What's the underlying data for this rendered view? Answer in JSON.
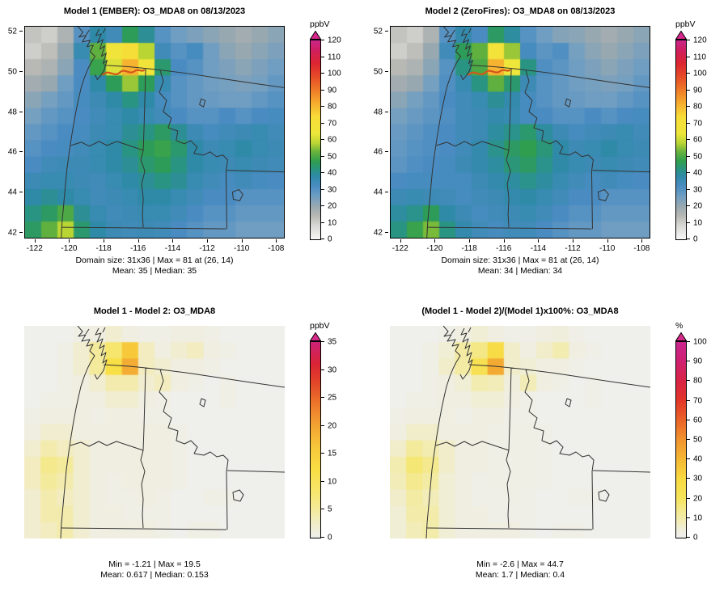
{
  "figure": {
    "background": "#ffffff",
    "boundary_color": "#333333",
    "plume_color": "#d4551a"
  },
  "chart_data": [
    {
      "type": "heatmap",
      "title": "Model 1 (EMBER): O3_MDA8 on 08/13/2023",
      "colorbar_label": "ppbV",
      "colorbar_min": 0,
      "colorbar_max": 120,
      "colorbar_ticks": [
        0,
        10,
        20,
        30,
        40,
        50,
        60,
        70,
        80,
        90,
        100,
        110,
        120
      ],
      "over_color": "#d6278c",
      "x_ticks": [
        -122,
        -120,
        -118,
        -116,
        -114,
        -112,
        -110,
        -108
      ],
      "y_ticks": [
        42,
        44,
        46,
        48,
        50,
        52
      ],
      "x_range": [
        -122.6,
        -107.5
      ],
      "y_range": [
        41.7,
        52.3
      ],
      "stats_line1": "Domain size: 31x36 | Max = 81 at (26, 14)",
      "stats_line2": "Mean: 35 | Median: 35",
      "colormap": [
        [
          0,
          "#f7f7f7"
        ],
        [
          8,
          "#d9d9d6"
        ],
        [
          14,
          "#b8b8b4"
        ],
        [
          20,
          "#98a8b0"
        ],
        [
          26,
          "#6f9ec2"
        ],
        [
          32,
          "#4a8cc2"
        ],
        [
          38,
          "#2f8aa8"
        ],
        [
          42,
          "#2a9482"
        ],
        [
          47,
          "#2f9e4f"
        ],
        [
          53,
          "#6ab33c"
        ],
        [
          58,
          "#b9d534"
        ],
        [
          64,
          "#eee63a"
        ],
        [
          74,
          "#f8dc38"
        ],
        [
          82,
          "#f6ad2e"
        ],
        [
          90,
          "#ef7b28"
        ],
        [
          98,
          "#e64c28"
        ],
        [
          106,
          "#dc2631"
        ],
        [
          114,
          "#cf1f5e"
        ],
        [
          120,
          "#c9268c"
        ]
      ],
      "grid": [
        [
          12,
          10,
          16,
          30,
          38,
          34,
          46,
          40,
          30,
          26,
          24,
          22,
          20,
          18,
          20,
          22
        ],
        [
          10,
          13,
          20,
          36,
          52,
          66,
          72,
          58,
          34,
          30,
          33,
          26,
          22,
          20,
          22,
          24
        ],
        [
          14,
          16,
          22,
          32,
          48,
          62,
          81,
          66,
          44,
          32,
          30,
          26,
          24,
          22,
          24,
          26
        ],
        [
          18,
          20,
          26,
          32,
          38,
          46,
          56,
          46,
          36,
          30,
          28,
          26,
          25,
          24,
          25,
          28
        ],
        [
          22,
          25,
          28,
          33,
          35,
          38,
          42,
          38,
          33,
          30,
          28,
          27,
          26,
          26,
          28,
          30
        ],
        [
          25,
          28,
          30,
          32,
          34,
          36,
          38,
          36,
          34,
          32,
          30,
          30,
          32,
          30,
          32,
          33
        ],
        [
          28,
          30,
          32,
          33,
          35,
          36,
          40,
          42,
          45,
          40,
          35,
          33,
          34,
          35,
          36,
          34
        ],
        [
          30,
          32,
          33,
          34,
          36,
          38,
          42,
          46,
          48,
          44,
          38,
          35,
          36,
          38,
          36,
          35
        ],
        [
          32,
          34,
          35,
          35,
          36,
          38,
          40,
          44,
          46,
          42,
          38,
          36,
          35,
          36,
          35,
          34
        ],
        [
          35,
          36,
          36,
          35,
          34,
          36,
          38,
          40,
          42,
          40,
          36,
          34,
          33,
          34,
          33,
          32
        ],
        [
          38,
          40,
          38,
          36,
          34,
          35,
          36,
          38,
          38,
          36,
          34,
          32,
          32,
          30,
          30,
          30
        ],
        [
          42,
          45,
          50,
          40,
          36,
          34,
          35,
          36,
          36,
          34,
          32,
          30,
          30,
          28,
          28,
          28
        ],
        [
          45,
          52,
          58,
          44,
          38,
          35,
          34,
          35,
          34,
          32,
          30,
          28,
          28,
          26,
          26,
          26
        ]
      ]
    },
    {
      "type": "heatmap",
      "title": "Model 2 (ZeroFires): O3_MDA8 on 08/13/2023",
      "colorbar_label": "ppbV",
      "colorbar_min": 0,
      "colorbar_max": 120,
      "colorbar_ticks": [
        0,
        10,
        20,
        30,
        40,
        50,
        60,
        70,
        80,
        90,
        100,
        110,
        120
      ],
      "over_color": "#d6278c",
      "x_ticks": [
        -122,
        -120,
        -118,
        -116,
        -114,
        -112,
        -110,
        -108
      ],
      "y_ticks": [
        42,
        44,
        46,
        48,
        50,
        52
      ],
      "x_range": [
        -122.6,
        -107.5
      ],
      "y_range": [
        41.7,
        52.3
      ],
      "stats_line1": "Domain size: 31x36 | Max = 81 at (26, 14)",
      "stats_line2": "Mean: 34 | Median: 34",
      "colormap": [
        [
          0,
          "#f7f7f7"
        ],
        [
          8,
          "#d9d9d6"
        ],
        [
          14,
          "#b8b8b4"
        ],
        [
          20,
          "#98a8b0"
        ],
        [
          26,
          "#6f9ec2"
        ],
        [
          32,
          "#4a8cc2"
        ],
        [
          38,
          "#2f8aa8"
        ],
        [
          42,
          "#2a9482"
        ],
        [
          47,
          "#2f9e4f"
        ],
        [
          53,
          "#6ab33c"
        ],
        [
          58,
          "#b9d534"
        ],
        [
          64,
          "#eee63a"
        ],
        [
          74,
          "#f8dc38"
        ],
        [
          82,
          "#f6ad2e"
        ],
        [
          90,
          "#ef7b28"
        ],
        [
          98,
          "#e64c28"
        ],
        [
          106,
          "#dc2631"
        ],
        [
          114,
          "#cf1f5e"
        ],
        [
          120,
          "#c9268c"
        ]
      ],
      "grid": [
        [
          12,
          10,
          16,
          30,
          37,
          32,
          45,
          39,
          30,
          26,
          23,
          22,
          20,
          18,
          20,
          22
        ],
        [
          10,
          13,
          20,
          34,
          46,
          52,
          68,
          56,
          33,
          29,
          31,
          25,
          22,
          20,
          22,
          24
        ],
        [
          14,
          16,
          22,
          30,
          42,
          50,
          81,
          64,
          42,
          31,
          29,
          26,
          24,
          22,
          24,
          26
        ],
        [
          18,
          20,
          25,
          31,
          36,
          42,
          52,
          44,
          35,
          30,
          28,
          26,
          25,
          24,
          25,
          28
        ],
        [
          22,
          25,
          28,
          32,
          34,
          36,
          40,
          37,
          33,
          30,
          28,
          27,
          26,
          26,
          28,
          30
        ],
        [
          25,
          27,
          29,
          31,
          34,
          35,
          37,
          36,
          33,
          32,
          30,
          30,
          32,
          30,
          32,
          33
        ],
        [
          27,
          29,
          31,
          32,
          34,
          35,
          39,
          41,
          44,
          39,
          35,
          33,
          34,
          35,
          36,
          34
        ],
        [
          28,
          30,
          31,
          32,
          34,
          37,
          41,
          45,
          47,
          43,
          38,
          35,
          36,
          38,
          36,
          35
        ],
        [
          29,
          31,
          32,
          33,
          35,
          37,
          39,
          43,
          45,
          41,
          38,
          36,
          35,
          36,
          35,
          34
        ],
        [
          32,
          33,
          33,
          33,
          33,
          35,
          37,
          39,
          41,
          39,
          36,
          34,
          33,
          34,
          33,
          32
        ],
        [
          35,
          36,
          35,
          34,
          33,
          34,
          35,
          37,
          38,
          36,
          34,
          32,
          32,
          30,
          30,
          30
        ],
        [
          39,
          41,
          46,
          38,
          35,
          33,
          34,
          35,
          36,
          34,
          32,
          30,
          30,
          28,
          28,
          28
        ],
        [
          42,
          48,
          54,
          42,
          37,
          34,
          33,
          34,
          34,
          32,
          30,
          28,
          28,
          26,
          26,
          26
        ]
      ]
    },
    {
      "type": "heatmap",
      "title": "Model 1 - Model 2: O3_MDA8",
      "colorbar_label": "ppbV",
      "colorbar_min": 0,
      "colorbar_max": 35,
      "colorbar_ticks": [
        0,
        5,
        10,
        15,
        20,
        25,
        30,
        35
      ],
      "over_color": "#d62a8a",
      "stats_line1": "Min = -1.21 | Max = 19.5",
      "stats_line2": "Mean: 0.617 | Median: 0.153",
      "colormap": [
        [
          0,
          "#efefec"
        ],
        [
          1,
          "#efeee0"
        ],
        [
          3,
          "#f2ecc0"
        ],
        [
          5,
          "#f4ea9c"
        ],
        [
          8,
          "#f6e66e"
        ],
        [
          12,
          "#f8df45"
        ],
        [
          16,
          "#f7c93a"
        ],
        [
          20,
          "#f3a432"
        ],
        [
          24,
          "#ec762b"
        ],
        [
          28,
          "#e24229"
        ],
        [
          31,
          "#da2435"
        ],
        [
          35,
          "#cb2277"
        ]
      ],
      "grid": [
        [
          0,
          0,
          0,
          0.5,
          1,
          2,
          1,
          0.5,
          0.5,
          1,
          1,
          0.5,
          0,
          0,
          0,
          0
        ],
        [
          0,
          0,
          0.5,
          2,
          5,
          8,
          16,
          3,
          1,
          2,
          3,
          1,
          0.5,
          0,
          0,
          0
        ],
        [
          0,
          0,
          0.5,
          2,
          5,
          12,
          19,
          3,
          2,
          1,
          1,
          0.5,
          0,
          0,
          0,
          0
        ],
        [
          0,
          0,
          0.5,
          1,
          2,
          4,
          4,
          2,
          3,
          1,
          0.5,
          0,
          0.5,
          0,
          0,
          0
        ],
        [
          0,
          0.5,
          0.5,
          1,
          1,
          2,
          2,
          1,
          0.5,
          0,
          0,
          0,
          0.5,
          0,
          0,
          0
        ],
        [
          0.5,
          1,
          1,
          1,
          0.5,
          1,
          1,
          0.5,
          0.5,
          0,
          0,
          0,
          0,
          0,
          0,
          0
        ],
        [
          1,
          2,
          2,
          1,
          1,
          1,
          1,
          1,
          1,
          0.5,
          0,
          0,
          0,
          0,
          0,
          0
        ],
        [
          2,
          4,
          3,
          2,
          1,
          1,
          1,
          1,
          1,
          0.5,
          0,
          0,
          0,
          0,
          0,
          0
        ],
        [
          3,
          6,
          5,
          2,
          1,
          1,
          1,
          1,
          1,
          0.5,
          0,
          0,
          0,
          0,
          0,
          0
        ],
        [
          3,
          5,
          4,
          2,
          1,
          0.5,
          1,
          1,
          1,
          0.5,
          0,
          0,
          0,
          0,
          0,
          0
        ],
        [
          2,
          4,
          3,
          2,
          1,
          0.5,
          0.5,
          1,
          0.5,
          0,
          0,
          0.5,
          0.5,
          0,
          0,
          0
        ],
        [
          2,
          4,
          4,
          2,
          1,
          1,
          0.5,
          0.5,
          0.5,
          0,
          0,
          0,
          0,
          0,
          0,
          0
        ],
        [
          2,
          3,
          4,
          2,
          1,
          1,
          1,
          1,
          0.5,
          0,
          0.5,
          0.5,
          0,
          0,
          0,
          0
        ]
      ]
    },
    {
      "type": "heatmap",
      "title": "(Model 1 - Model 2)/(Model 1)x100%: O3_MDA8",
      "colorbar_label": "%",
      "colorbar_min": 0,
      "colorbar_max": 100,
      "colorbar_ticks": [
        0,
        10,
        20,
        30,
        40,
        50,
        60,
        70,
        80,
        90,
        100
      ],
      "over_color": "#d62a8a",
      "stats_line1": "Min = -2.6 | Max = 44.7",
      "stats_line2": "Mean: 1.7 | Median: 0.4",
      "colormap": [
        [
          0,
          "#efefec"
        ],
        [
          4,
          "#efeedd"
        ],
        [
          8,
          "#f2ecb8"
        ],
        [
          14,
          "#f4e98e"
        ],
        [
          20,
          "#f6e45c"
        ],
        [
          30,
          "#f8da40"
        ],
        [
          40,
          "#f5b834"
        ],
        [
          50,
          "#f1942e"
        ],
        [
          60,
          "#ea6328"
        ],
        [
          70,
          "#e23628"
        ],
        [
          80,
          "#d92344"
        ],
        [
          90,
          "#cf2070"
        ],
        [
          100,
          "#c9268f"
        ]
      ],
      "grid": [
        [
          0,
          0,
          0,
          1,
          3,
          5,
          3,
          1,
          1,
          3,
          4,
          1,
          0,
          0,
          0,
          0
        ],
        [
          0,
          0,
          2,
          5,
          11,
          15,
          28,
          6,
          3,
          6,
          9,
          3,
          1,
          0,
          0,
          0
        ],
        [
          0,
          0,
          2,
          6,
          11,
          24,
          44,
          6,
          5,
          3,
          3,
          1,
          0,
          0,
          0,
          0
        ],
        [
          0,
          0,
          2,
          3,
          5,
          9,
          8,
          4,
          8,
          3,
          2,
          0,
          1,
          0,
          0,
          0
        ],
        [
          0,
          2,
          2,
          3,
          3,
          5,
          5,
          3,
          1,
          0,
          0,
          0,
          1,
          0,
          0,
          0
        ],
        [
          2,
          3,
          3,
          3,
          1,
          3,
          3,
          1,
          1,
          0,
          0,
          0,
          0,
          0,
          0,
          0
        ],
        [
          3,
          6,
          6,
          3,
          3,
          3,
          2,
          2,
          2,
          1,
          0,
          0,
          0,
          0,
          0,
          0
        ],
        [
          6,
          12,
          9,
          6,
          3,
          3,
          2,
          2,
          2,
          1,
          0,
          0,
          0,
          0,
          0,
          0
        ],
        [
          9,
          17,
          14,
          6,
          3,
          3,
          2,
          2,
          2,
          1,
          0,
          0,
          0,
          0,
          0,
          0
        ],
        [
          8,
          14,
          11,
          5,
          3,
          1,
          2,
          2,
          2,
          1,
          0,
          0,
          0,
          0,
          0,
          0
        ],
        [
          6,
          11,
          8,
          5,
          3,
          1,
          1,
          2,
          1,
          0,
          0,
          1,
          1,
          0,
          0,
          0
        ],
        [
          5,
          10,
          10,
          5,
          3,
          3,
          1,
          1,
          1,
          0,
          0,
          0,
          0,
          0,
          0,
          0
        ],
        [
          5,
          8,
          10,
          5,
          3,
          3,
          3,
          3,
          1,
          0,
          1,
          1,
          0,
          0,
          0,
          0
        ]
      ]
    }
  ]
}
